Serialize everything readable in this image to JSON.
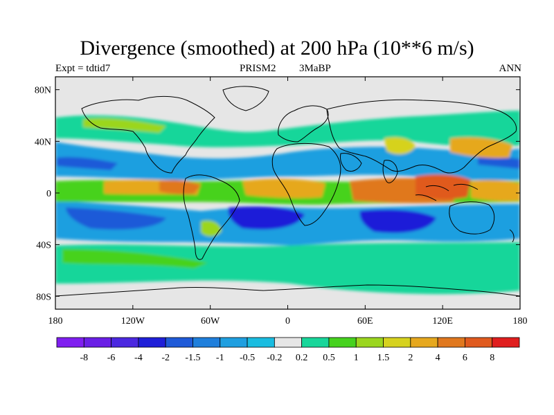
{
  "figure": {
    "title": "Divergence (smoothed) at 200 hPa (10**6 m/s)",
    "left_label": "Expt = tdtid7",
    "center_label_1": "PRISM2",
    "center_label_2": "3MaBP",
    "right_label": "ANN"
  },
  "axes": {
    "lon_range": [
      -180,
      180
    ],
    "lat_range": [
      -90,
      90
    ],
    "lat_ticks": [
      {
        "value": 80,
        "label": "80N"
      },
      {
        "value": 40,
        "label": "40N"
      },
      {
        "value": 0,
        "label": "0"
      },
      {
        "value": -40,
        "label": "40S"
      },
      {
        "value": -80,
        "label": "80S"
      }
    ],
    "lon_ticks": [
      {
        "value": -180,
        "label": "180"
      },
      {
        "value": -120,
        "label": "120W"
      },
      {
        "value": -60,
        "label": "60W"
      },
      {
        "value": 0,
        "label": "0"
      },
      {
        "value": 60,
        "label": "60E"
      },
      {
        "value": 120,
        "label": "120E"
      },
      {
        "value": 180,
        "label": "180"
      }
    ]
  },
  "colorbar": {
    "colors": [
      "#7f1ff0",
      "#6a1fe6",
      "#4b28e0",
      "#1f1fd8",
      "#1f5ad8",
      "#1f7fdc",
      "#1f9fe0",
      "#19bce0",
      "#e6e6e6",
      "#18d69a",
      "#46d21e",
      "#9bd61e",
      "#d6d21e",
      "#e6a81e",
      "#e0781e",
      "#e05a1e",
      "#e01e1e"
    ],
    "labels": [
      "-8",
      "-6",
      "-4",
      "-2",
      "-1.5",
      "-1",
      "-0.5",
      "-0.2",
      "0.2",
      "0.5",
      "1",
      "1.5",
      "2",
      "4",
      "6",
      "8"
    ]
  },
  "chart_data": {
    "type": "heatmap",
    "variable": "Divergence (smoothed) at 200 hPa",
    "units": "10**6 m/s",
    "projection": "cylindrical equidistant",
    "levels": [
      -8,
      -6,
      -4,
      -2,
      -1.5,
      -1,
      -0.5,
      -0.2,
      0.2,
      0.5,
      1,
      1.5,
      2,
      4,
      6,
      8
    ],
    "features": [
      {
        "desc": "Maritime Continent / West Pacific divergence maximum",
        "lon": 110,
        "lat": 0,
        "value": 6
      },
      {
        "desc": "Eastern Indian Ocean divergence",
        "lon": 70,
        "lat": 2,
        "value": 5
      },
      {
        "desc": "Western Pacific warm pool divergence",
        "lon": 160,
        "lat": 0,
        "value": 4
      },
      {
        "desc": "Central America / East Pacific ITCZ divergence",
        "lon": -95,
        "lat": 8,
        "value": 5
      },
      {
        "desc": "Equatorial Africa divergence",
        "lon": 15,
        "lat": 0,
        "value": 3
      },
      {
        "desc": "Amazon divergence",
        "lon": -60,
        "lat": -5,
        "value": 2
      },
      {
        "desc": "North Pacific subtropical convergence",
        "lon": -150,
        "lat": 22,
        "value": -2
      },
      {
        "desc": "South Pacific subtropical convergence",
        "lon": -120,
        "lat": -20,
        "value": -4
      },
      {
        "desc": "South Atlantic subtropical convergence",
        "lon": -20,
        "lat": -22,
        "value": -4
      },
      {
        "desc": "South Indian Ocean subtropical convergence",
        "lon": 80,
        "lat": -22,
        "value": -5
      },
      {
        "desc": "Sahara / Middle East convergence",
        "lon": 30,
        "lat": 22,
        "value": -2
      }
    ]
  }
}
